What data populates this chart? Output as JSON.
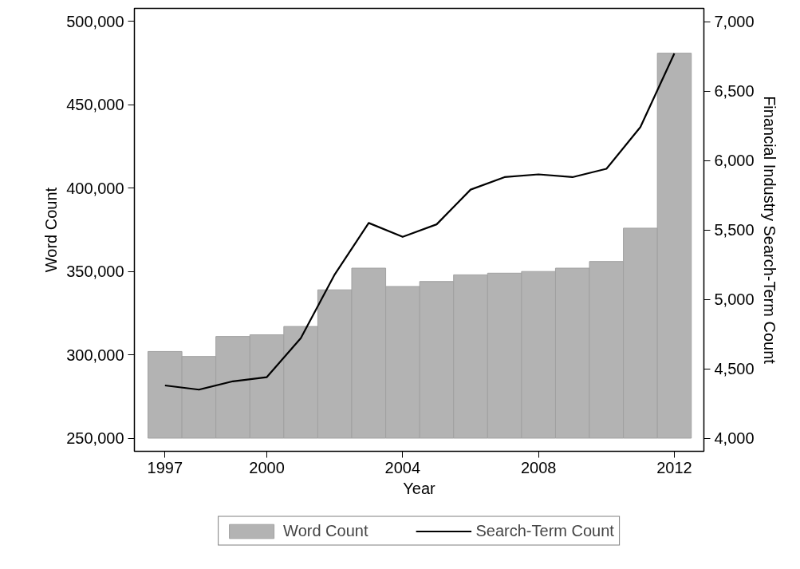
{
  "chart_data": {
    "type": "bar",
    "xlabel": "Year",
    "ylabel": "Word Count",
    "y2label": "Financial Industry Search-Term Count",
    "x": [
      1997,
      1998,
      1999,
      2000,
      2001,
      2002,
      2003,
      2004,
      2005,
      2006,
      2007,
      2008,
      2009,
      2010,
      2011,
      2012
    ],
    "series": [
      {
        "name": "Word Count",
        "color": "#b3b3b3",
        "base": [
          250000,
          250000,
          250000,
          250000,
          250000,
          250000,
          250000,
          250000,
          250000,
          250000,
          250000,
          250000,
          250000,
          250000,
          250000,
          250000
        ],
        "values": [
          52000,
          49000,
          61000,
          62000,
          67000,
          89000,
          102000,
          91000,
          94000,
          98000,
          99000,
          100000,
          102000,
          106000,
          126000,
          231000
        ]
      },
      {
        "name": "Search-Term Count",
        "type": "line",
        "axis": "y2",
        "color": "#000000",
        "values": [
          4380,
          4350,
          4410,
          4440,
          4720,
          5180,
          5550,
          5450,
          5540,
          5790,
          5880,
          5900,
          5880,
          5940,
          6240,
          6770
        ]
      }
    ],
    "xlim": [
      1996.1,
      2012.87
    ],
    "xticks": [
      1997,
      2000,
      2004,
      2008,
      2012
    ],
    "ylim": [
      242100,
      507900
    ],
    "yticks": [
      {
        "value": 250000,
        "label": "250,000"
      },
      {
        "value": 300000,
        "label": "300,000"
      },
      {
        "value": 350000,
        "label": "350,000"
      },
      {
        "value": 400000,
        "label": "400,000"
      },
      {
        "value": 450000,
        "label": "450,000"
      },
      {
        "value": 500000,
        "label": "500,000"
      }
    ],
    "y2lim": [
      3906,
      7095
    ],
    "y2ticks": [
      {
        "value": 4000,
        "label": "4,000"
      },
      {
        "value": 4500,
        "label": "4,500"
      },
      {
        "value": 5000,
        "label": "5,000"
      },
      {
        "value": 5500,
        "label": "5,500"
      },
      {
        "value": 6000,
        "label": "6,000"
      },
      {
        "value": 6500,
        "label": "6,500"
      },
      {
        "value": 7000,
        "label": "7,000"
      }
    ],
    "legend": "bottom",
    "grid": false,
    "marker": "none",
    "line_style": "solid"
  }
}
